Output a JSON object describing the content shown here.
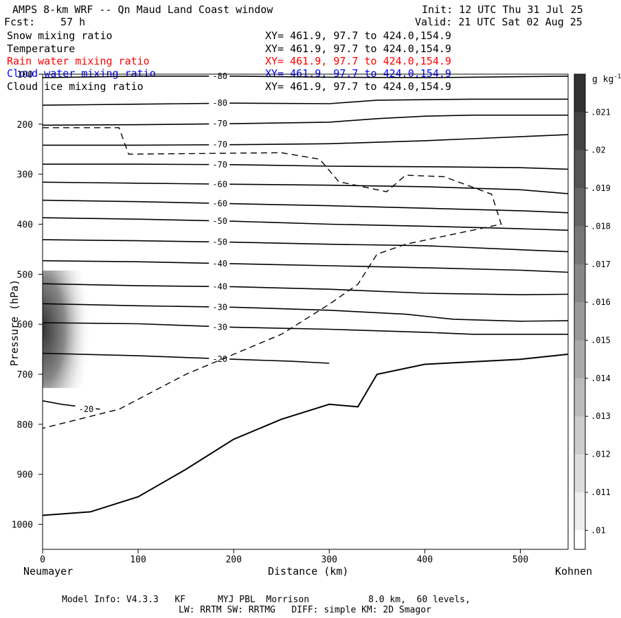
{
  "header": {
    "title": "AMPS 8-km WRF -- Qn Maud Land Coast window",
    "init": "Init: 12 UTC Thu 31 Jul 25",
    "fcst_label": "Fcst:",
    "fcst_value": "57 h",
    "valid": "Valid: 21 UTC Sat 02 Aug 25"
  },
  "fields": [
    {
      "name": "Snow mixing ratio",
      "xy": "XY= 461.9, 97.7 to 424.0,154.9",
      "color": "#000000"
    },
    {
      "name": "Temperature",
      "xy": "XY= 461.9, 97.7 to 424.0,154.9",
      "color": "#000000"
    },
    {
      "name": "Rain water mixing ratio",
      "xy": "XY= 461.9, 97.7 to 424.0,154.9",
      "color": "#ff0000"
    },
    {
      "name": "Cloud water mixing ratio",
      "xy": "XY= 461.9, 97.7 to 424.0,154.9",
      "color": "#0000ff"
    },
    {
      "name": "Cloud ice mixing ratio",
      "xy": "XY= 461.9, 97.7 to 424.0,154.9",
      "color": "#000000"
    }
  ],
  "axes": {
    "xlabel": "Distance (km)",
    "ylabel": "Pressure (hPa)",
    "left_location": "Neumayer",
    "right_location": "Kohnen"
  },
  "colorbar": {
    "unit": "g kg",
    "unit_exp": "-1",
    "ticks": [
      ".021",
      ".02",
      ".019",
      ".018",
      ".017",
      ".016",
      ".015",
      ".014",
      ".013",
      ".012",
      ".011",
      ".01"
    ]
  },
  "footer": {
    "line1": "Model Info: V4.3.3   KF      MYJ PBL  Morrison           8.0 km,  60 levels,",
    "line2": "LW: RRTM SW: RRTMG   DIFF: simple KM: 2D Smagor"
  },
  "chart_data": {
    "type": "contour",
    "xlim": [
      0,
      550
    ],
    "ylim": [
      1050,
      100
    ],
    "xticks": [
      0,
      100,
      200,
      300,
      400,
      500
    ],
    "yticks": [
      100,
      200,
      300,
      400,
      500,
      600,
      700,
      800,
      900,
      1000
    ],
    "snow_max_region": {
      "x_range": [
        0,
        30
      ],
      "p_range": [
        520,
        700
      ],
      "value": 0.021
    },
    "temperature_contours": [
      {
        "label": "-80",
        "points": [
          [
            0,
            107
          ],
          [
            100,
            104
          ],
          [
            200,
            104
          ],
          [
            300,
            106
          ],
          [
            400,
            107
          ],
          [
            450,
            106
          ],
          [
            550,
            104
          ]
        ]
      },
      {
        "label": "-80",
        "points": [
          [
            0,
            162
          ],
          [
            100,
            160
          ],
          [
            200,
            158
          ],
          [
            300,
            159
          ],
          [
            350,
            152
          ],
          [
            450,
            150
          ],
          [
            550,
            150
          ]
        ]
      },
      {
        "label": "-70",
        "points": [
          [
            0,
            202
          ],
          [
            100,
            201
          ],
          [
            200,
            199
          ],
          [
            300,
            196
          ],
          [
            350,
            189
          ],
          [
            400,
            184
          ],
          [
            450,
            182
          ],
          [
            550,
            182
          ]
        ]
      },
      {
        "label": "-70",
        "points": [
          [
            0,
            242
          ],
          [
            100,
            242
          ],
          [
            200,
            241
          ],
          [
            300,
            239
          ],
          [
            400,
            233
          ],
          [
            450,
            229
          ],
          [
            550,
            221
          ]
        ]
      },
      {
        "label": "-70",
        "points": [
          [
            0,
            280
          ],
          [
            100,
            280
          ],
          [
            200,
            281
          ],
          [
            300,
            284
          ],
          [
            400,
            285
          ],
          [
            500,
            287
          ],
          [
            550,
            290
          ]
        ]
      },
      {
        "label": "-60",
        "points": [
          [
            0,
            316
          ],
          [
            100,
            318
          ],
          [
            200,
            320
          ],
          [
            300,
            322
          ],
          [
            400,
            325
          ],
          [
            500,
            331
          ],
          [
            550,
            339
          ]
        ]
      },
      {
        "label": "-60",
        "points": [
          [
            0,
            352
          ],
          [
            100,
            355
          ],
          [
            200,
            359
          ],
          [
            300,
            363
          ],
          [
            400,
            368
          ],
          [
            500,
            373
          ],
          [
            550,
            377
          ]
        ]
      },
      {
        "label": "-50",
        "points": [
          [
            0,
            387
          ],
          [
            100,
            390
          ],
          [
            200,
            394
          ],
          [
            300,
            400
          ],
          [
            400,
            404
          ],
          [
            500,
            409
          ],
          [
            550,
            412
          ]
        ]
      },
      {
        "label": "-50",
        "points": [
          [
            0,
            431
          ],
          [
            100,
            433
          ],
          [
            200,
            436
          ],
          [
            300,
            440
          ],
          [
            400,
            443
          ],
          [
            500,
            451
          ],
          [
            550,
            455
          ]
        ]
      },
      {
        "label": "-40",
        "points": [
          [
            0,
            473
          ],
          [
            100,
            475
          ],
          [
            200,
            479
          ],
          [
            300,
            483
          ],
          [
            400,
            487
          ],
          [
            500,
            492
          ],
          [
            550,
            496
          ]
        ]
      },
      {
        "label": "-40",
        "points": [
          [
            0,
            519
          ],
          [
            100,
            523
          ],
          [
            200,
            525
          ],
          [
            300,
            530
          ],
          [
            400,
            538
          ],
          [
            500,
            541
          ],
          [
            550,
            540
          ]
        ]
      },
      {
        "label": "-30",
        "points": [
          [
            0,
            559
          ],
          [
            100,
            563
          ],
          [
            200,
            566
          ],
          [
            300,
            572
          ],
          [
            380,
            580
          ],
          [
            430,
            590
          ],
          [
            500,
            594
          ],
          [
            550,
            593
          ]
        ]
      },
      {
        "label": "-30",
        "points": [
          [
            0,
            597
          ],
          [
            100,
            599
          ],
          [
            200,
            606
          ],
          [
            300,
            610
          ],
          [
            400,
            616
          ],
          [
            450,
            620
          ],
          [
            550,
            620
          ]
        ]
      },
      {
        "label": "-20",
        "points": [
          [
            0,
            658
          ],
          [
            100,
            663
          ],
          [
            200,
            670
          ],
          [
            260,
            674
          ],
          [
            300,
            678
          ]
        ]
      },
      {
        "label": "-20",
        "points": [
          [
            0,
            753
          ],
          [
            20,
            760
          ],
          [
            60,
            770
          ]
        ]
      }
    ],
    "cloud_ice_dashed": {
      "p_top": 207,
      "p_bottom": 808,
      "x_range": [
        0,
        550
      ]
    },
    "terrain_pressure": {
      "x": [
        0,
        50,
        100,
        150,
        200,
        250,
        300,
        330,
        350,
        400,
        500,
        550
      ],
      "p": [
        982,
        975,
        945,
        890,
        830,
        790,
        760,
        765,
        700,
        680,
        670,
        660
      ]
    }
  }
}
